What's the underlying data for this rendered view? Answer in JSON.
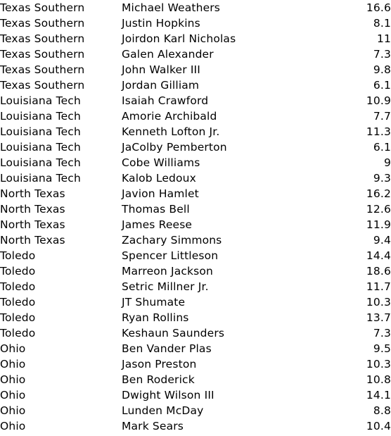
{
  "rows": [
    {
      "team": "Texas Southern",
      "player": "Michael Weathers",
      "value": "16.6"
    },
    {
      "team": "Texas Southern",
      "player": "Justin Hopkins",
      "value": "8.1"
    },
    {
      "team": "Texas Southern",
      "player": "Joirdon Karl Nicholas",
      "value": "11"
    },
    {
      "team": "Texas Southern",
      "player": "Galen Alexander",
      "value": "7.3"
    },
    {
      "team": "Texas Southern",
      "player": "John Walker III",
      "value": "9.8"
    },
    {
      "team": "Texas Southern",
      "player": "Jordan Gilliam",
      "value": "6.1"
    },
    {
      "team": "Louisiana Tech",
      "player": "Isaiah Crawford",
      "value": "10.9"
    },
    {
      "team": "Louisiana Tech",
      "player": "Amorie Archibald",
      "value": "7.7"
    },
    {
      "team": "Louisiana Tech",
      "player": "Kenneth Lofton Jr.",
      "value": "11.3"
    },
    {
      "team": "Louisiana Tech",
      "player": "JaColby Pemberton",
      "value": "6.1"
    },
    {
      "team": "Louisiana Tech",
      "player": "Cobe Williams",
      "value": "9"
    },
    {
      "team": "Louisiana Tech",
      "player": "Kalob Ledoux",
      "value": "9.3"
    },
    {
      "team": "North Texas",
      "player": "Javion Hamlet",
      "value": "16.2"
    },
    {
      "team": "North Texas",
      "player": "Thomas Bell",
      "value": "12.6"
    },
    {
      "team": "North Texas",
      "player": "James Reese",
      "value": "11.9"
    },
    {
      "team": "North Texas",
      "player": "Zachary Simmons",
      "value": "9.4"
    },
    {
      "team": "Toledo",
      "player": "Spencer Littleson",
      "value": "14.4"
    },
    {
      "team": "Toledo",
      "player": "Marreon Jackson",
      "value": "18.6"
    },
    {
      "team": "Toledo",
      "player": "Setric Millner Jr.",
      "value": "11.7"
    },
    {
      "team": "Toledo",
      "player": "JT Shumate",
      "value": "10.3"
    },
    {
      "team": "Toledo",
      "player": "Ryan Rollins",
      "value": "13.7"
    },
    {
      "team": "Toledo",
      "player": "Keshaun Saunders",
      "value": "7.3"
    },
    {
      "team": "Ohio",
      "player": "Ben Vander Plas",
      "value": "9.5"
    },
    {
      "team": "Ohio",
      "player": "Jason Preston",
      "value": "10.3"
    },
    {
      "team": "Ohio",
      "player": "Ben Roderick",
      "value": "10.8"
    },
    {
      "team": "Ohio",
      "player": "Dwight Wilson III",
      "value": "14.1"
    },
    {
      "team": "Ohio",
      "player": "Lunden McDay",
      "value": "8.8"
    },
    {
      "team": "Ohio",
      "player": "Mark Sears",
      "value": "10.4"
    }
  ]
}
